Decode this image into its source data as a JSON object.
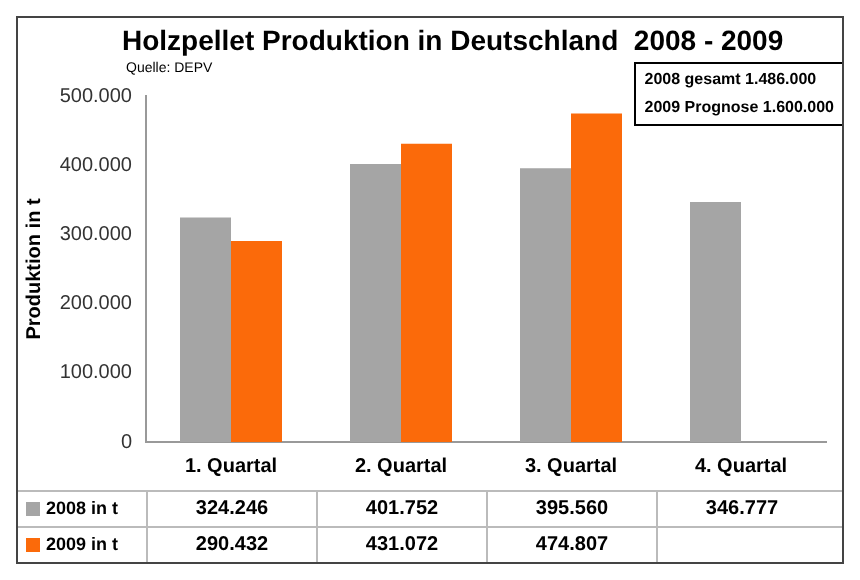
{
  "chart_data": {
    "type": "bar",
    "title": "Holzpellet Produktion in Deutschland  2008 - 2009",
    "ylabel": "Produktion in t",
    "annotations": [
      "Quelle: DEPV",
      "2008 gesamt 1.486.000",
      "2009 Prognose 1.600.000"
    ],
    "categories": [
      "1. Quartal",
      "2. Quartal",
      "3. Quartal",
      "4. Quartal"
    ],
    "series": [
      {
        "name": "2008 in t",
        "color": "#a5a5a5",
        "values": [
          324246,
          401752,
          395560,
          346777
        ],
        "value_labels": [
          "324.246",
          "401.752",
          "395.560",
          "346.777"
        ]
      },
      {
        "name": "2009 in t",
        "color": "#fb6a0a",
        "values": [
          290432,
          431072,
          474807,
          null
        ],
        "value_labels": [
          "290.432",
          "431.072",
          "474.807",
          null
        ]
      }
    ],
    "ylim": [
      0,
      500000
    ],
    "yticks": [
      {
        "value": 0,
        "label": "0"
      },
      {
        "value": 100000,
        "label": "100.000"
      },
      {
        "value": 200000,
        "label": "200.000"
      },
      {
        "value": 300000,
        "label": "300.000"
      },
      {
        "value": 400000,
        "label": "400.000"
      },
      {
        "value": 500000,
        "label": "500.000"
      }
    ],
    "grid": false,
    "legend": "bottom"
  }
}
